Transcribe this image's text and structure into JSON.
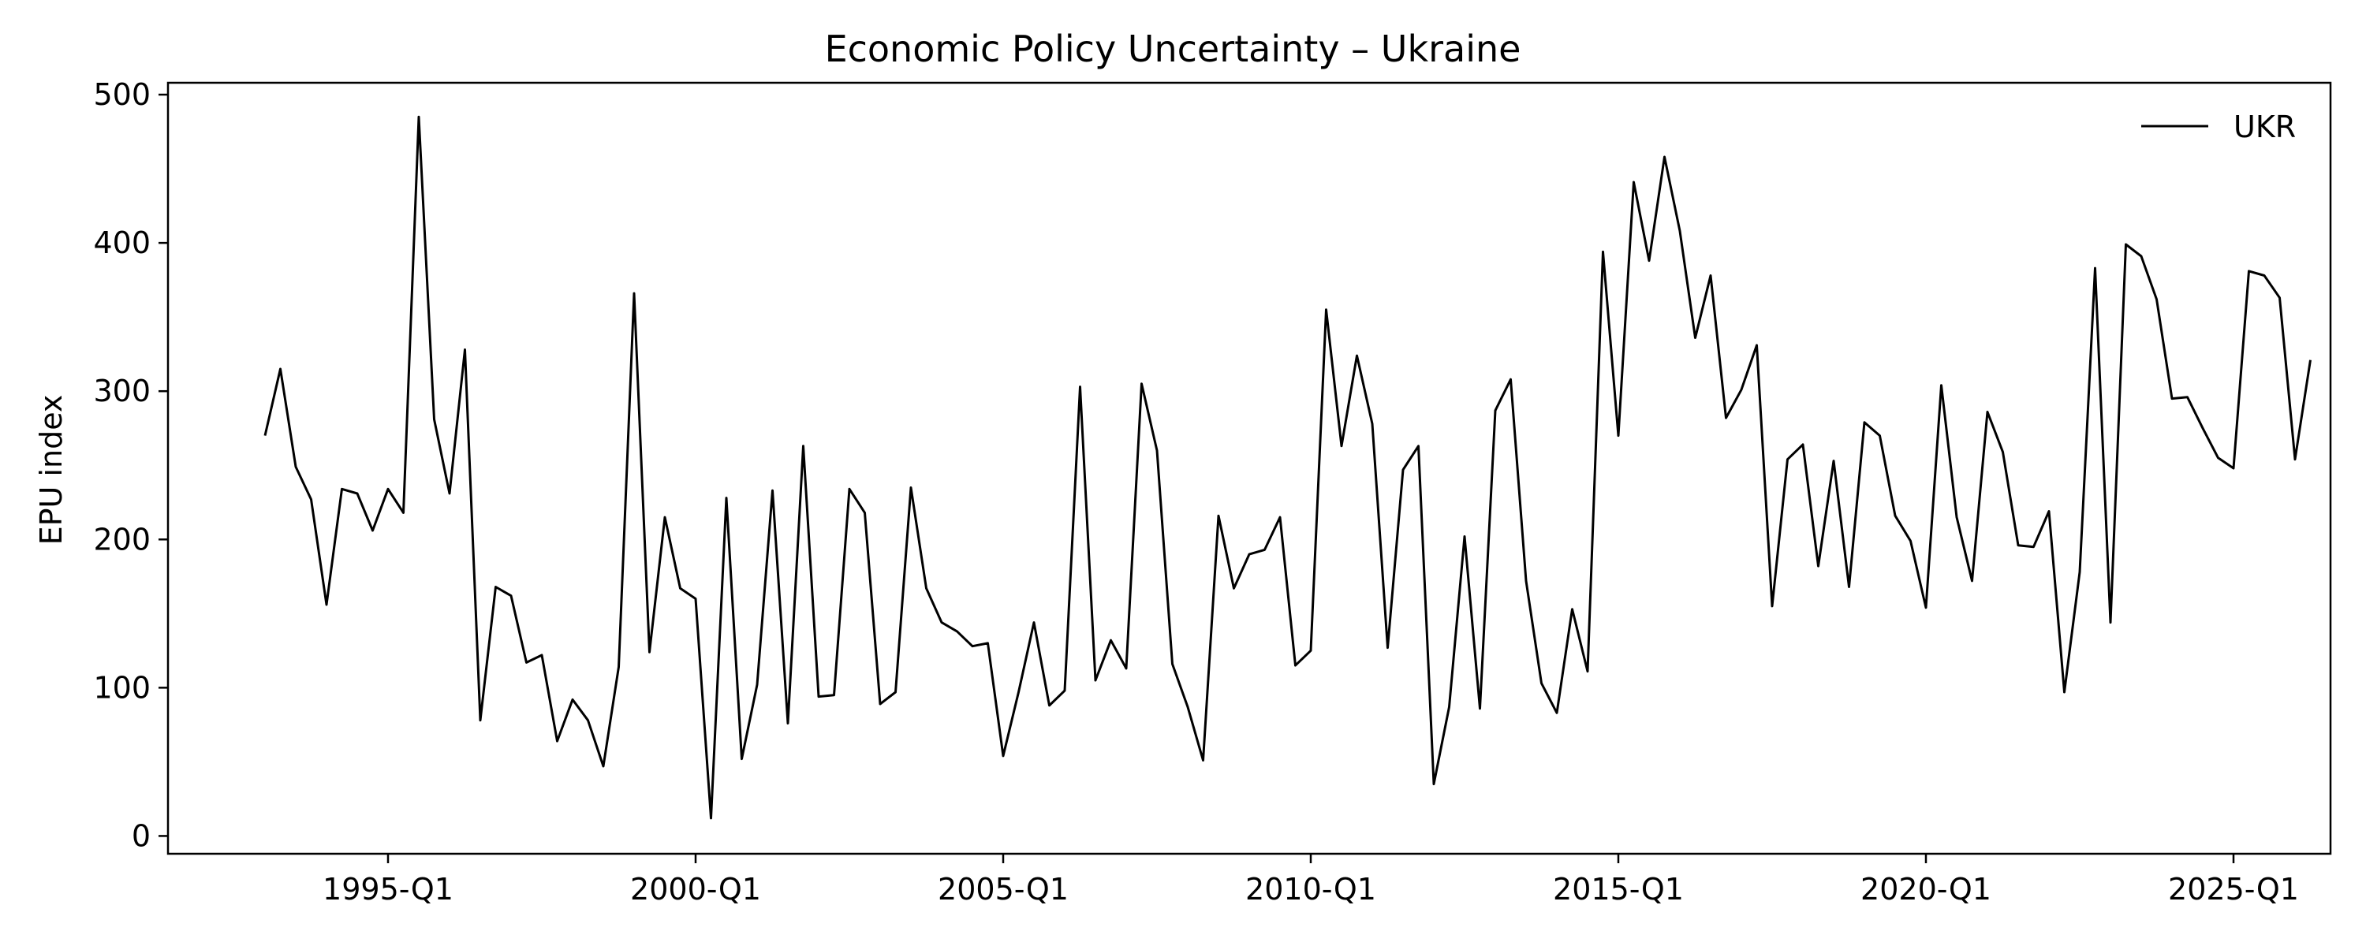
{
  "chart_data": {
    "type": "line",
    "title": "Economic Policy Uncertainty – Ukraine",
    "xlabel": "",
    "ylabel": "EPU index",
    "ylim": [
      -12,
      508
    ],
    "grid": false,
    "legend_placement": "top-right",
    "x_ticks": [
      "1995-Q1",
      "2000-Q1",
      "2005-Q1",
      "2010-Q1",
      "2015-Q1",
      "2020-Q1",
      "2025-Q1"
    ],
    "y_ticks": [
      0,
      100,
      200,
      300,
      400,
      500
    ],
    "x_start": "1993-Q1",
    "x_end": "2025-Q1",
    "series": [
      {
        "name": "UKR",
        "color": "#000000",
        "values": [
          270,
          315,
          249,
          227,
          156,
          234,
          231,
          206,
          234,
          218,
          485,
          281,
          231,
          328,
          78,
          168,
          162,
          117,
          122,
          64,
          92,
          78,
          47,
          114,
          366,
          124,
          215,
          167,
          160,
          12,
          228,
          52,
          102,
          233,
          76,
          263,
          94,
          95,
          234,
          218,
          89,
          97,
          235,
          167,
          144,
          138,
          128,
          130,
          54,
          97,
          144,
          88,
          98,
          303,
          105,
          132,
          113,
          305,
          260,
          116,
          87,
          51,
          216,
          167,
          190,
          193,
          215,
          115,
          125,
          355,
          263,
          324,
          278,
          127,
          247,
          263,
          35,
          87,
          202,
          86,
          287,
          308,
          172,
          103,
          83,
          153,
          111,
          394,
          270,
          441,
          388,
          458,
          408,
          336,
          378,
          282,
          301,
          331,
          155,
          254,
          264,
          182,
          253,
          168,
          279,
          270,
          216,
          199,
          154,
          304,
          215,
          172,
          286,
          259,
          196,
          195,
          219,
          97,
          178,
          383,
          144,
          399,
          391,
          362,
          295,
          296,
          275,
          255,
          248,
          381,
          378,
          363,
          254,
          321
        ]
      }
    ]
  }
}
